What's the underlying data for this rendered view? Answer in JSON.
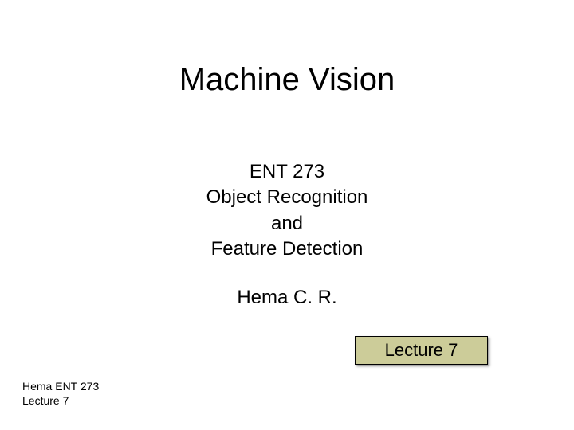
{
  "title": "Machine Vision",
  "subtitle": {
    "line1": "ENT 273",
    "line2": "Object  Recognition",
    "line3": "and",
    "line4": "Feature Detection"
  },
  "author": "Hema C. R.",
  "lecture_box": {
    "label": "Lecture 7",
    "background": "#cccc99",
    "border_color": "#000000",
    "text_color": "#000000",
    "fontsize": 22
  },
  "footer": {
    "line1": "Hema   ENT 273",
    "line2": "Lecture 7"
  },
  "style": {
    "title_fontsize": 40,
    "subtitle_fontsize": 24,
    "author_fontsize": 24,
    "footer_fontsize": 14,
    "text_color": "#000000",
    "background": "#ffffff"
  }
}
